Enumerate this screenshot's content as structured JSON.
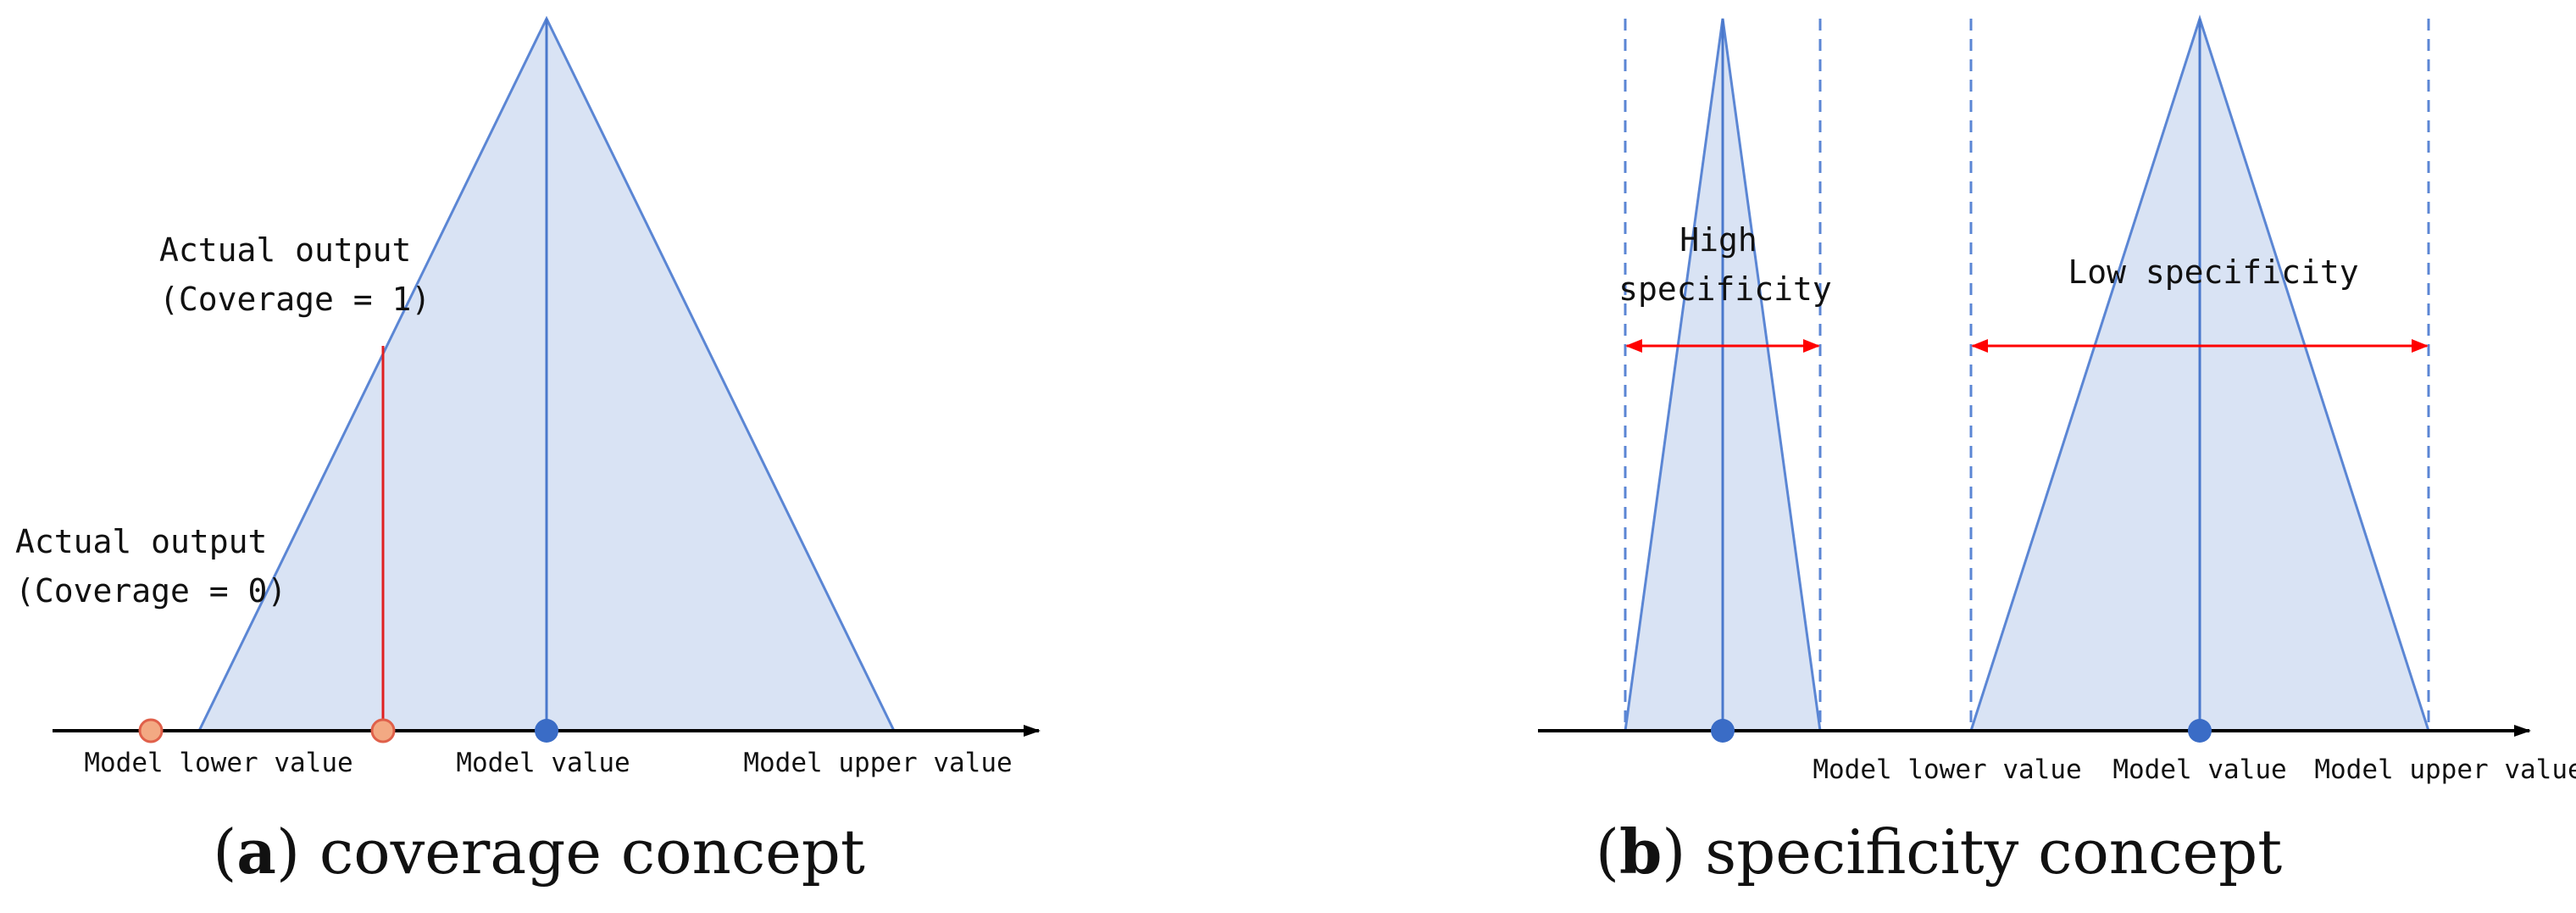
{
  "colors": {
    "fill": "#d9e3f4",
    "stroke": "#5b86d4",
    "axis": "#000000",
    "red": "#ff0000",
    "dot_blue": "#3a6cc6",
    "dot_orange": "#f3a983",
    "dot_orange_edge": "#e0604a"
  },
  "panel_a": {
    "label_output_in": {
      "line1": "Actual output",
      "line2": "(Coverage = 1)"
    },
    "label_output_out": {
      "line1": "Actual output",
      "line2": "(Coverage = 0)"
    },
    "axis_labels": {
      "lower": "Model lower value",
      "model": "Model value",
      "upper": "Model upper value"
    },
    "caption": {
      "letter": "a",
      "text": "coverage concept"
    }
  },
  "panel_b": {
    "label_high": {
      "line1": "High",
      "line2": "specificity"
    },
    "label_low": "Low specificity",
    "axis_labels": {
      "lower": "Model lower value",
      "model": "Model value",
      "upper": "Model upper value"
    },
    "caption": {
      "letter": "b",
      "text": "specificity concept"
    }
  }
}
